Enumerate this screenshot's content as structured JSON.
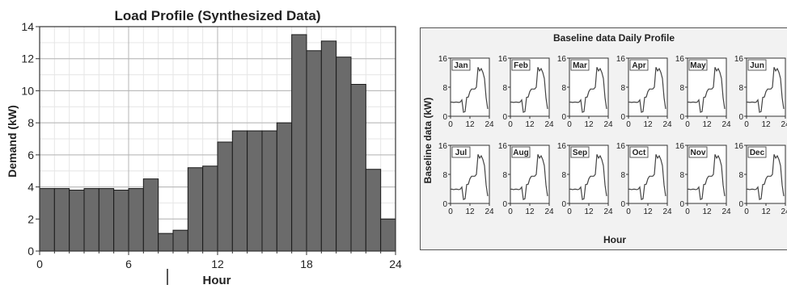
{
  "chart_data": [
    {
      "type": "bar",
      "title": "Load Profile (Synthesized Data)",
      "xlabel": "Hour",
      "ylabel": "Demand (kW)",
      "xlim": [
        0,
        24
      ],
      "ylim": [
        0,
        14
      ],
      "xticks": [
        "0",
        "6",
        "12",
        "18",
        "24"
      ],
      "yticks": [
        "0",
        "2",
        "4",
        "6",
        "8",
        "10",
        "12",
        "14"
      ],
      "grid": true,
      "bar_color": "#6b6b6b",
      "x": [
        0,
        1,
        2,
        3,
        4,
        5,
        6,
        7,
        8,
        9,
        10,
        11,
        12,
        13,
        14,
        15,
        16,
        17,
        18,
        19,
        20,
        21,
        22,
        23
      ],
      "values": [
        3.9,
        3.9,
        3.8,
        3.9,
        3.9,
        3.8,
        3.9,
        4.5,
        1.1,
        1.3,
        5.2,
        5.3,
        6.8,
        7.5,
        7.5,
        7.5,
        8.0,
        13.5,
        12.5,
        13.1,
        12.1,
        10.4,
        5.1,
        2.0
      ]
    },
    {
      "type": "line",
      "title": "Baseline data Daily Profile",
      "xlabel": "Hour",
      "ylabel": "Baseline data (kW)",
      "xlim": [
        0,
        24
      ],
      "ylim": [
        0,
        16
      ],
      "xticks": [
        "0",
        "12",
        "24"
      ],
      "yticks": [
        "0",
        "8",
        "16"
      ],
      "panels": [
        "Jan",
        "Feb",
        "Mar",
        "Apr",
        "May",
        "Jun",
        "Jul",
        "Aug",
        "Sep",
        "Oct",
        "Nov",
        "Dec"
      ],
      "x": [
        0,
        1,
        2,
        3,
        4,
        5,
        6,
        7,
        8,
        9,
        10,
        11,
        12,
        13,
        14,
        15,
        16,
        17,
        18,
        19,
        20,
        21,
        22,
        23
      ],
      "values": [
        3.9,
        3.9,
        3.8,
        3.9,
        3.9,
        3.8,
        3.9,
        4.5,
        1.1,
        1.3,
        5.2,
        5.3,
        6.8,
        7.5,
        7.5,
        7.5,
        8.0,
        13.5,
        12.5,
        13.1,
        12.1,
        10.4,
        5.1,
        2.0
      ]
    }
  ]
}
